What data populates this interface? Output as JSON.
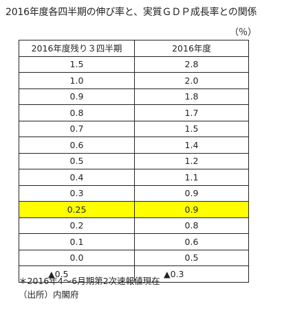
{
  "title": "2016年度各四半期の伸び率と、実質ＧＤＰ成長率との関係",
  "unit_label": "（％）",
  "table": {
    "headers": [
      "2016年度残り３四半期",
      "2016年度"
    ],
    "rows": [
      {
        "q": "1.5",
        "fy": "2.8"
      },
      {
        "q": "1.0",
        "fy": "2.0"
      },
      {
        "q": "0.9",
        "fy": "1.8"
      },
      {
        "q": "0.8",
        "fy": "1.7"
      },
      {
        "q": "0.7",
        "fy": "1.5"
      },
      {
        "q": "0.6",
        "fy": "1.4"
      },
      {
        "q": "0.5",
        "fy": "1.2"
      },
      {
        "q": "0.4",
        "fy": "1.1"
      },
      {
        "q": "0.3",
        "fy": "0.9"
      },
      {
        "q": "0.25",
        "fy": "0.9"
      },
      {
        "q": "0.2",
        "fy": "0.8"
      },
      {
        "q": "0.1",
        "fy": "0.6"
      },
      {
        "q": "0.0",
        "fy": "0.5"
      },
      {
        "q": "▲0.5",
        "fy": "▲0.3"
      }
    ]
  },
  "highlight_color": "#ffff00",
  "notes": [
    "＊2016年4～6月期第2次速報値現在",
    "（出所）内閣府"
  ]
}
